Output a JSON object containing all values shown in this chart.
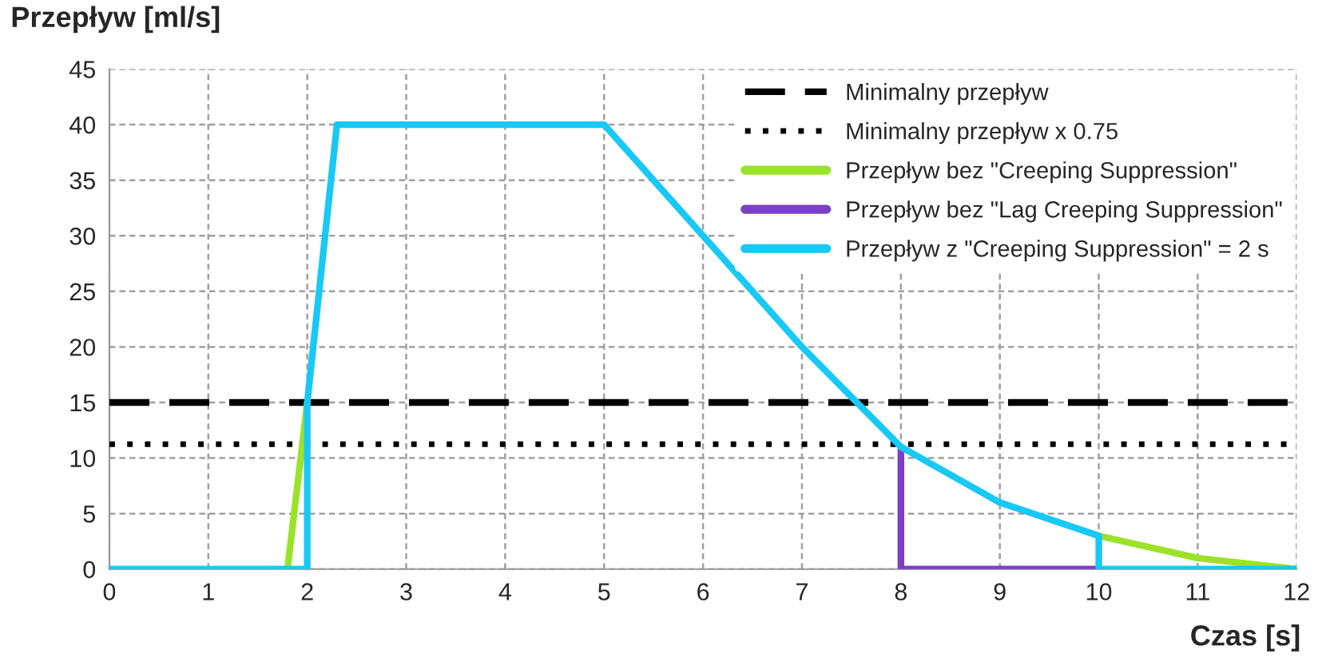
{
  "chart_data": {
    "type": "line",
    "ylabel": "Przepływ [ml/s]",
    "xlabel": "Czas [s]",
    "xlim": [
      0,
      12
    ],
    "xticks": [
      0,
      1,
      2,
      3,
      4,
      5,
      6,
      7,
      8,
      9,
      10,
      11,
      12
    ],
    "ylim": [
      0,
      45
    ],
    "yticks": [
      0,
      5,
      10,
      15,
      20,
      25,
      30,
      35,
      40,
      45
    ],
    "grid": true,
    "legend": "top right",
    "line_style": "solid",
    "marker": "none",
    "ref_lines": [
      {
        "axis": "y",
        "value": 15,
        "label": "Minimalny przepływ",
        "color": "#000000",
        "line_style": "dashed"
      },
      {
        "axis": "y",
        "value": 11.25,
        "label": "Minimalny przepływ x 0.75",
        "color": "#000000",
        "line_style": "dotted"
      }
    ],
    "series": [
      {
        "name": "Przepływ bez \"Creeping Suppression\"",
        "color": "#9be22b",
        "x": [
          1.8,
          2.0,
          6,
          10,
          11,
          12
        ],
        "values": [
          0,
          15,
          null,
          3,
          1,
          0
        ]
      },
      {
        "name": "Przepływ bez \"Lag Creeping Suppression\"",
        "color": "#7b40c4",
        "x": [
          8,
          8,
          10
        ],
        "values": [
          11,
          0,
          0
        ]
      },
      {
        "name": "Przepływ z \"Creeping Suppression\" = 2 s",
        "color": "#18c8f5",
        "x": [
          0,
          2,
          2,
          2.3,
          5,
          6,
          7,
          8,
          9,
          10,
          10,
          12
        ],
        "values": [
          0,
          0,
          15,
          40,
          40,
          30,
          20,
          11,
          6,
          3,
          0,
          0
        ]
      }
    ]
  }
}
